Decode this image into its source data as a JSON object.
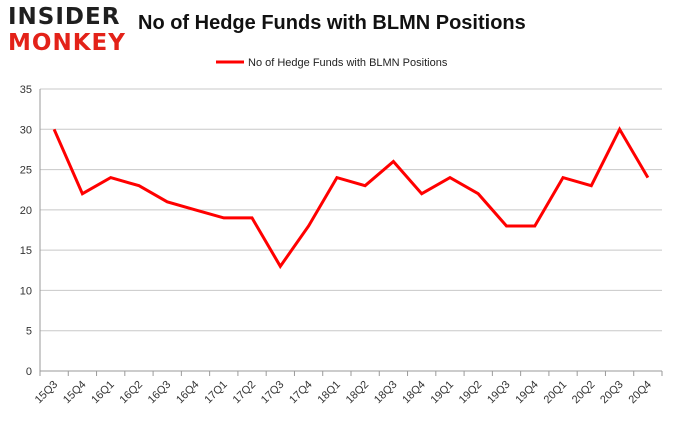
{
  "logo": {
    "line1": "INSIDER",
    "line2": "MONKEY"
  },
  "chart_data": {
    "type": "line",
    "title": "No of Hedge Funds with BLMN Positions",
    "categories": [
      "15Q3",
      "15Q4",
      "16Q1",
      "16Q2",
      "16Q3",
      "16Q4",
      "17Q1",
      "17Q2",
      "17Q3",
      "17Q4",
      "18Q1",
      "18Q2",
      "18Q3",
      "18Q4",
      "19Q1",
      "19Q2",
      "19Q3",
      "19Q4",
      "20Q1",
      "20Q2",
      "20Q3",
      "20Q4"
    ],
    "series": [
      {
        "name": "No of Hedge Funds with BLMN Positions",
        "values": [
          30,
          22,
          24,
          23,
          21,
          20,
          19,
          19,
          13,
          18,
          24,
          23,
          26,
          22,
          24,
          22,
          18,
          18,
          24,
          23,
          30,
          24
        ],
        "color": "#ff0000"
      }
    ],
    "ylim": [
      0,
      35
    ],
    "yticks": [
      0,
      5,
      10,
      15,
      20,
      25,
      30,
      35
    ],
    "grid": true,
    "legend": "top-center"
  }
}
